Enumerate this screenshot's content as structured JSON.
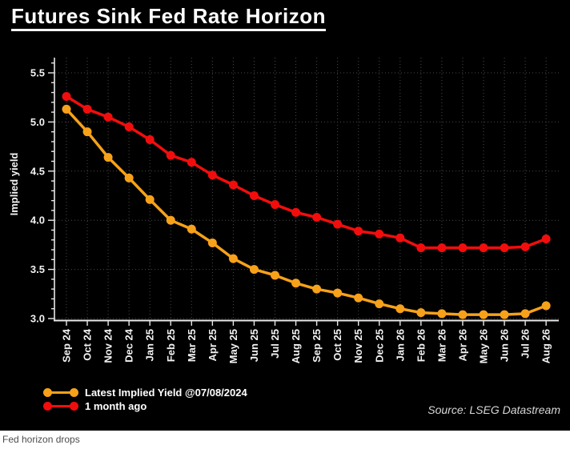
{
  "title": "Futures Sink Fed Rate Horizon",
  "source_note": "Source: LSEG Datastream",
  "caption": "Fed horizon drops",
  "colors": {
    "background": "#000000",
    "title_text": "#FFFFFF",
    "axis": "#E8E8E8",
    "grid": "#4A4A4A",
    "orange_series": "#F7A11A",
    "red_series": "#F20D0D",
    "source_text": "#D8D8D8",
    "caption_text": "#4D4D4D"
  },
  "chart_data": {
    "type": "line",
    "title": "Futures Sink Fed Rate Horizon",
    "xlabel": "",
    "ylabel": "Implied yield",
    "ylim": [
      2.95,
      5.62
    ],
    "yticks": [
      3.0,
      3.5,
      4.0,
      4.5,
      5.0,
      5.5
    ],
    "grid": "dotted",
    "legend_position": "bottom-left",
    "categories": [
      "Sep 24",
      "Oct 24",
      "Nov 24",
      "Dec 24",
      "Jan 25",
      "Feb 25",
      "Mar 25",
      "Apr 25",
      "May 25",
      "Jun 25",
      "Jul 25",
      "Aug 25",
      "Sep 25",
      "Oct 25",
      "Nov 25",
      "Dec 25",
      "Jan 26",
      "Feb 26",
      "Mar 26",
      "Apr 26",
      "May 26",
      "Jun 26",
      "Jul 26",
      "Aug 26"
    ],
    "series": [
      {
        "name": "Latest Implied Yield @07/08/2024",
        "color": "#F7A11A",
        "values": [
          5.13,
          4.9,
          4.64,
          4.43,
          4.21,
          4.0,
          3.91,
          3.77,
          3.61,
          3.5,
          3.44,
          3.36,
          3.3,
          3.26,
          3.21,
          3.15,
          3.1,
          3.06,
          3.05,
          3.04,
          3.04,
          3.04,
          3.05,
          3.13
        ]
      },
      {
        "name": "1 month ago",
        "color": "#F20D0D",
        "values": [
          5.26,
          5.13,
          5.05,
          4.95,
          4.82,
          4.66,
          4.59,
          4.46,
          4.36,
          4.25,
          4.16,
          4.08,
          4.03,
          3.96,
          3.89,
          3.86,
          3.82,
          3.72,
          3.72,
          3.72,
          3.72,
          3.72,
          3.73,
          3.81
        ]
      }
    ]
  }
}
